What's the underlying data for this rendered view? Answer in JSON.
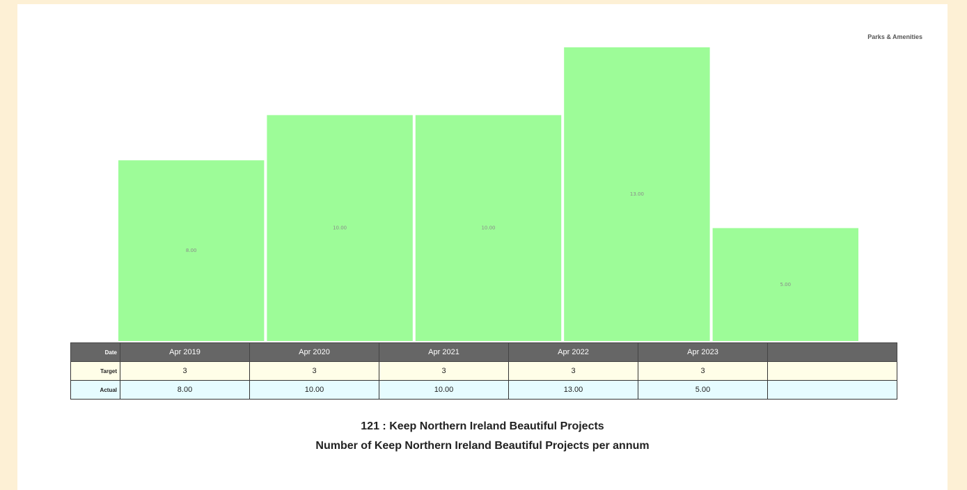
{
  "department": "Parks & Amenities",
  "chart_data": {
    "type": "bar",
    "categories": [
      "Apr 2019",
      "Apr 2020",
      "Apr 2021",
      "Apr 2022",
      "Apr 2023"
    ],
    "values": [
      8.0,
      10.0,
      10.0,
      13.0,
      5.0
    ],
    "value_labels": [
      "8.00",
      "10.00",
      "10.00",
      "13.00",
      "5.00"
    ],
    "ylim": [
      0,
      13
    ],
    "bar_color": "#9dfc98",
    "grid": false
  },
  "table": {
    "headers": {
      "date": "Date",
      "target": "Target",
      "actual": "Actual"
    },
    "dates": [
      "Apr 2019",
      "Apr 2020",
      "Apr 2021",
      "Apr 2022",
      "Apr 2023"
    ],
    "targets": [
      "3",
      "3",
      "3",
      "3",
      "3"
    ],
    "actuals": [
      "8.00",
      "10.00",
      "10.00",
      "13.00",
      "5.00"
    ]
  },
  "caption": {
    "title": "121 : Keep Northern Ireland Beautiful Projects",
    "subtitle": "Number of Keep Northern Ireland Beautiful Projects per annum"
  }
}
